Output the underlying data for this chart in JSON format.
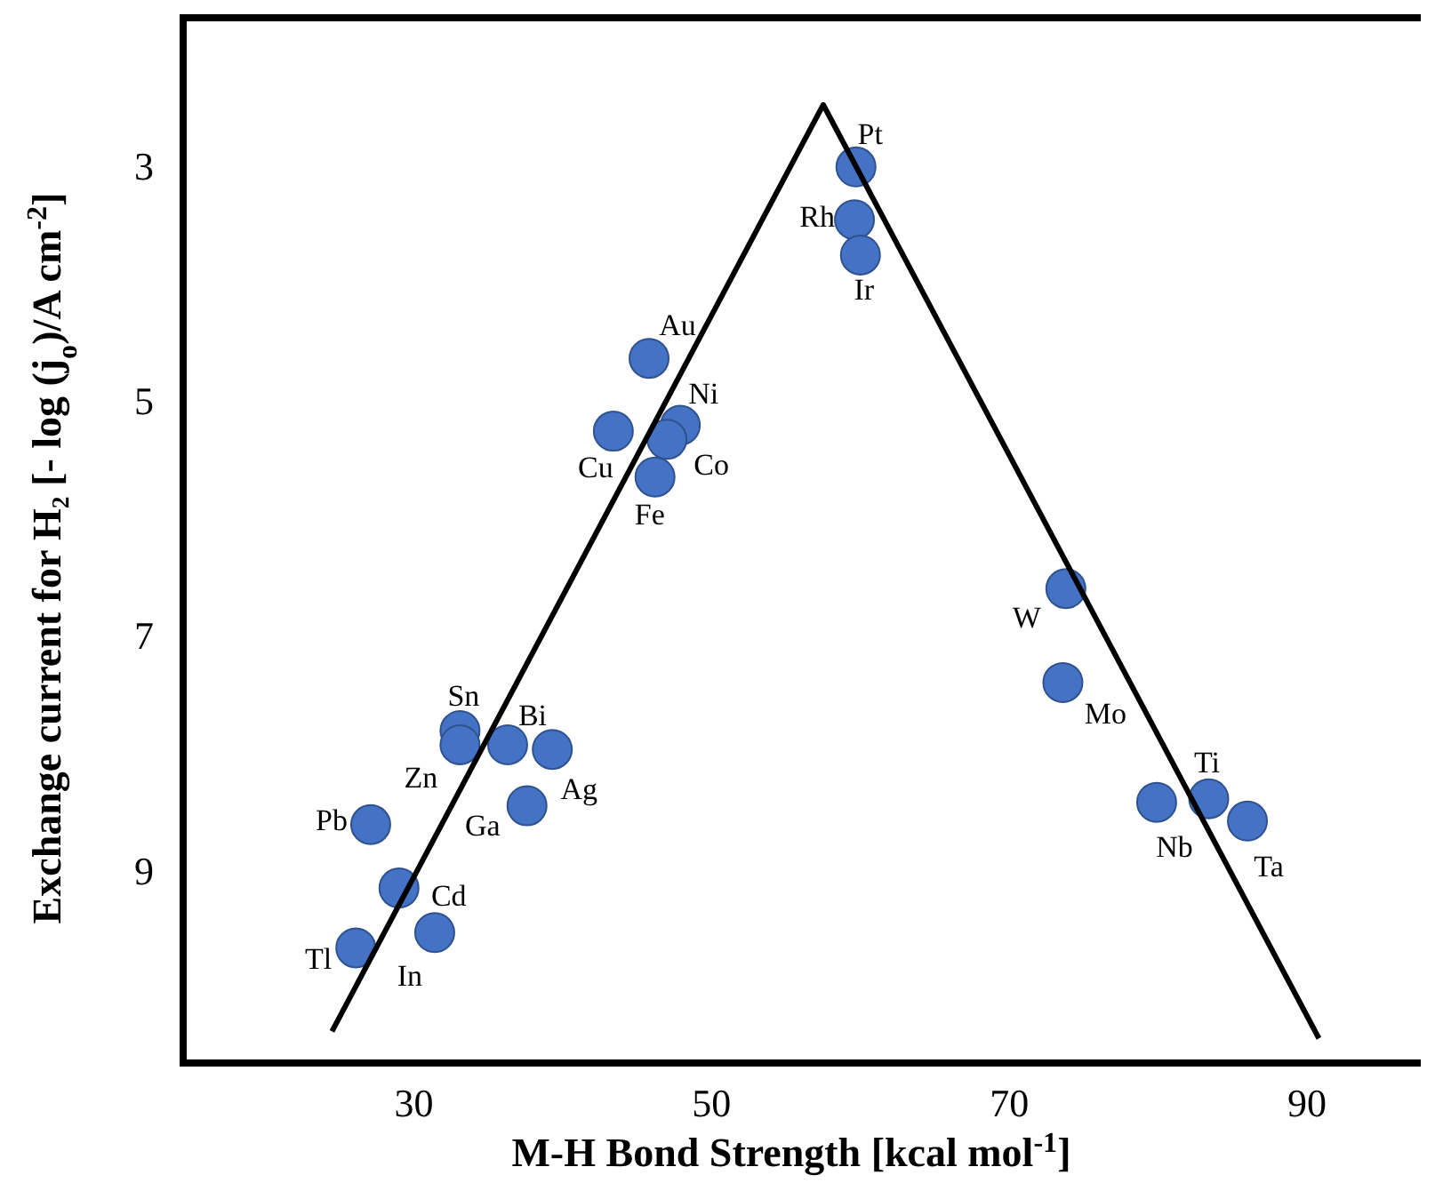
{
  "chart_data": {
    "type": "scatter",
    "xlabel": "M-H Bond Strength [kcal mol$^{-1}$]",
    "ylabel": "Exchange current for H₂ [- log (j$_{o}$)/A cm$^{-2}$]",
    "xlim": [
      14.5,
      98.6
    ],
    "ylim": [
      10.6,
      1.7
    ],
    "xticks": [
      30,
      50,
      70,
      90
    ],
    "yticks": [
      3,
      5,
      7,
      9
    ],
    "grid": false,
    "marker": "circle",
    "series": [
      {
        "color": "#4472c4",
        "x": [
          59.7,
          59.6,
          60.0,
          45.8,
          47.9,
          43.4,
          47.0,
          46.2,
          73.8,
          73.6,
          33.1,
          33.1,
          36.3,
          39.3,
          37.6,
          27.1,
          29.0,
          31.4,
          26.1,
          79.9,
          83.4,
          86.0
        ],
        "values": [
          2.97,
          3.42,
          3.72,
          4.6,
          5.17,
          5.22,
          5.29,
          5.61,
          6.56,
          7.36,
          7.77,
          7.89,
          7.89,
          7.93,
          8.41,
          8.57,
          9.11,
          9.49,
          9.62,
          8.38,
          8.35,
          8.54
        ]
      },
      {
        "type": "line",
        "color": "#000000",
        "marker": "none",
        "line_style": "solid",
        "x": [
          24.5,
          57.5,
          90.8
        ],
        "values": [
          10.33,
          2.44,
          10.39
        ]
      }
    ],
    "annotations": [
      {
        "text": "Pt",
        "x": 59.7,
        "y": 2.97
      },
      {
        "text": "Rh",
        "x": 59.6,
        "y": 3.42
      },
      {
        "text": "Ir",
        "x": 60.0,
        "y": 3.72
      },
      {
        "text": "Au",
        "x": 45.8,
        "y": 4.6
      },
      {
        "text": "Ni",
        "x": 47.9,
        "y": 5.17
      },
      {
        "text": "Cu",
        "x": 43.4,
        "y": 5.22
      },
      {
        "text": "Co",
        "x": 47.0,
        "y": 5.29
      },
      {
        "text": "Fe",
        "x": 46.2,
        "y": 5.61
      },
      {
        "text": "W",
        "x": 73.8,
        "y": 6.56
      },
      {
        "text": "Mo",
        "x": 73.6,
        "y": 7.36
      },
      {
        "text": "Sn",
        "x": 33.1,
        "y": 7.77
      },
      {
        "text": "Zn",
        "x": 33.1,
        "y": 7.89
      },
      {
        "text": "Bi",
        "x": 36.3,
        "y": 7.89
      },
      {
        "text": "Ag",
        "x": 39.3,
        "y": 7.93
      },
      {
        "text": "Ga",
        "x": 37.6,
        "y": 8.41
      },
      {
        "text": "Pb",
        "x": 27.1,
        "y": 8.57
      },
      {
        "text": "Cd",
        "x": 29.0,
        "y": 9.11
      },
      {
        "text": "In",
        "x": 31.4,
        "y": 9.49
      },
      {
        "text": "Tl",
        "x": 26.1,
        "y": 9.62
      },
      {
        "text": "Nb",
        "x": 79.9,
        "y": 8.38
      },
      {
        "text": "Ti",
        "x": 83.4,
        "y": 8.35
      },
      {
        "text": "Ta",
        "x": 86.0,
        "y": 8.54
      }
    ]
  }
}
